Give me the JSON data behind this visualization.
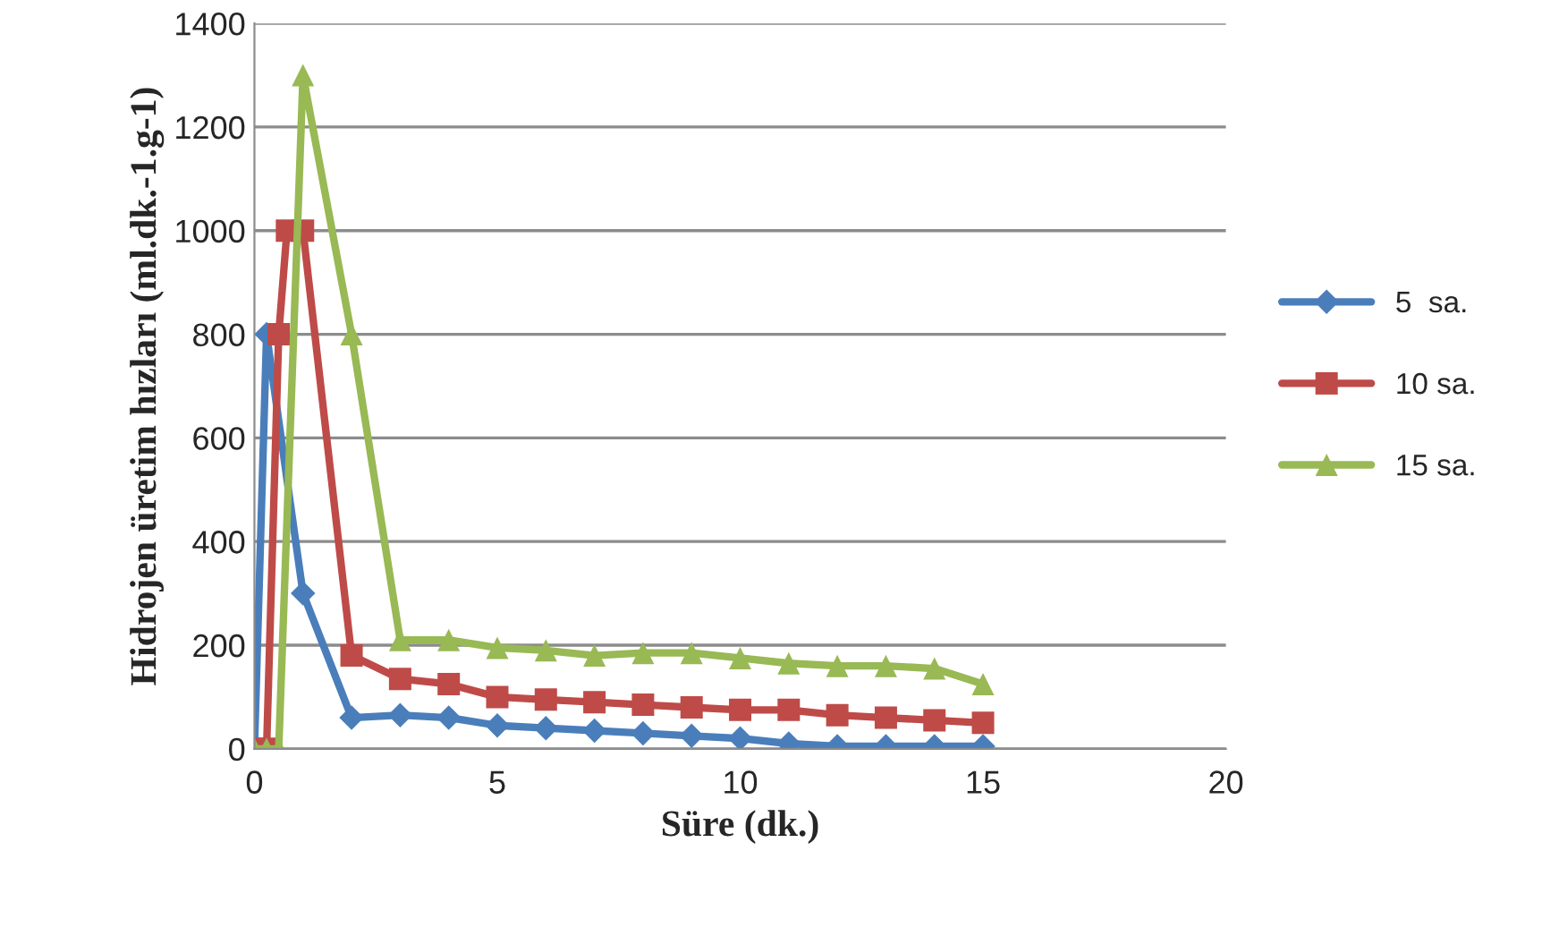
{
  "chart_data": {
    "type": "line",
    "xlabel": "Süre (dk.)",
    "ylabel": "Hidrojen üretim hızları (ml.dk.-1.g-1)",
    "xlim": [
      0,
      20
    ],
    "xticks": [
      0,
      5,
      10,
      15,
      20
    ],
    "ylim": [
      0,
      1400
    ],
    "yticks": [
      0,
      200,
      400,
      600,
      800,
      1000,
      1200,
      1400
    ],
    "grid": "y",
    "legend": "right",
    "series": [
      {
        "name": "5  sa.",
        "color": "#4a7ebb",
        "marker": "diamond",
        "x": [
          0,
          0.25,
          1,
          2,
          3,
          4,
          5,
          6,
          7,
          8,
          9,
          10,
          11,
          12,
          13,
          14,
          15
        ],
        "values": [
          0,
          800,
          300,
          60,
          65,
          60,
          45,
          40,
          35,
          30,
          25,
          20,
          10,
          5,
          5,
          5,
          5
        ]
      },
      {
        "name": "10 sa.",
        "color": "#be4b48",
        "marker": "square",
        "x": [
          0,
          0.25,
          0.5,
          0.67,
          1,
          2,
          3,
          4,
          5,
          6,
          7,
          8,
          9,
          10,
          11,
          12,
          13,
          14,
          15
        ],
        "values": [
          0,
          0,
          800,
          1000,
          1000,
          180,
          135,
          125,
          100,
          95,
          90,
          85,
          80,
          75,
          75,
          65,
          60,
          55,
          50
        ]
      },
      {
        "name": "15 sa.",
        "color": "#98b954",
        "marker": "triangle",
        "x": [
          0,
          0.25,
          0.5,
          1,
          2,
          3,
          4,
          5,
          6,
          7,
          8,
          9,
          10,
          11,
          12,
          13,
          14,
          15
        ],
        "values": [
          0,
          0,
          0,
          1300,
          800,
          210,
          210,
          195,
          190,
          180,
          185,
          185,
          175,
          165,
          160,
          160,
          155,
          125
        ]
      }
    ]
  }
}
